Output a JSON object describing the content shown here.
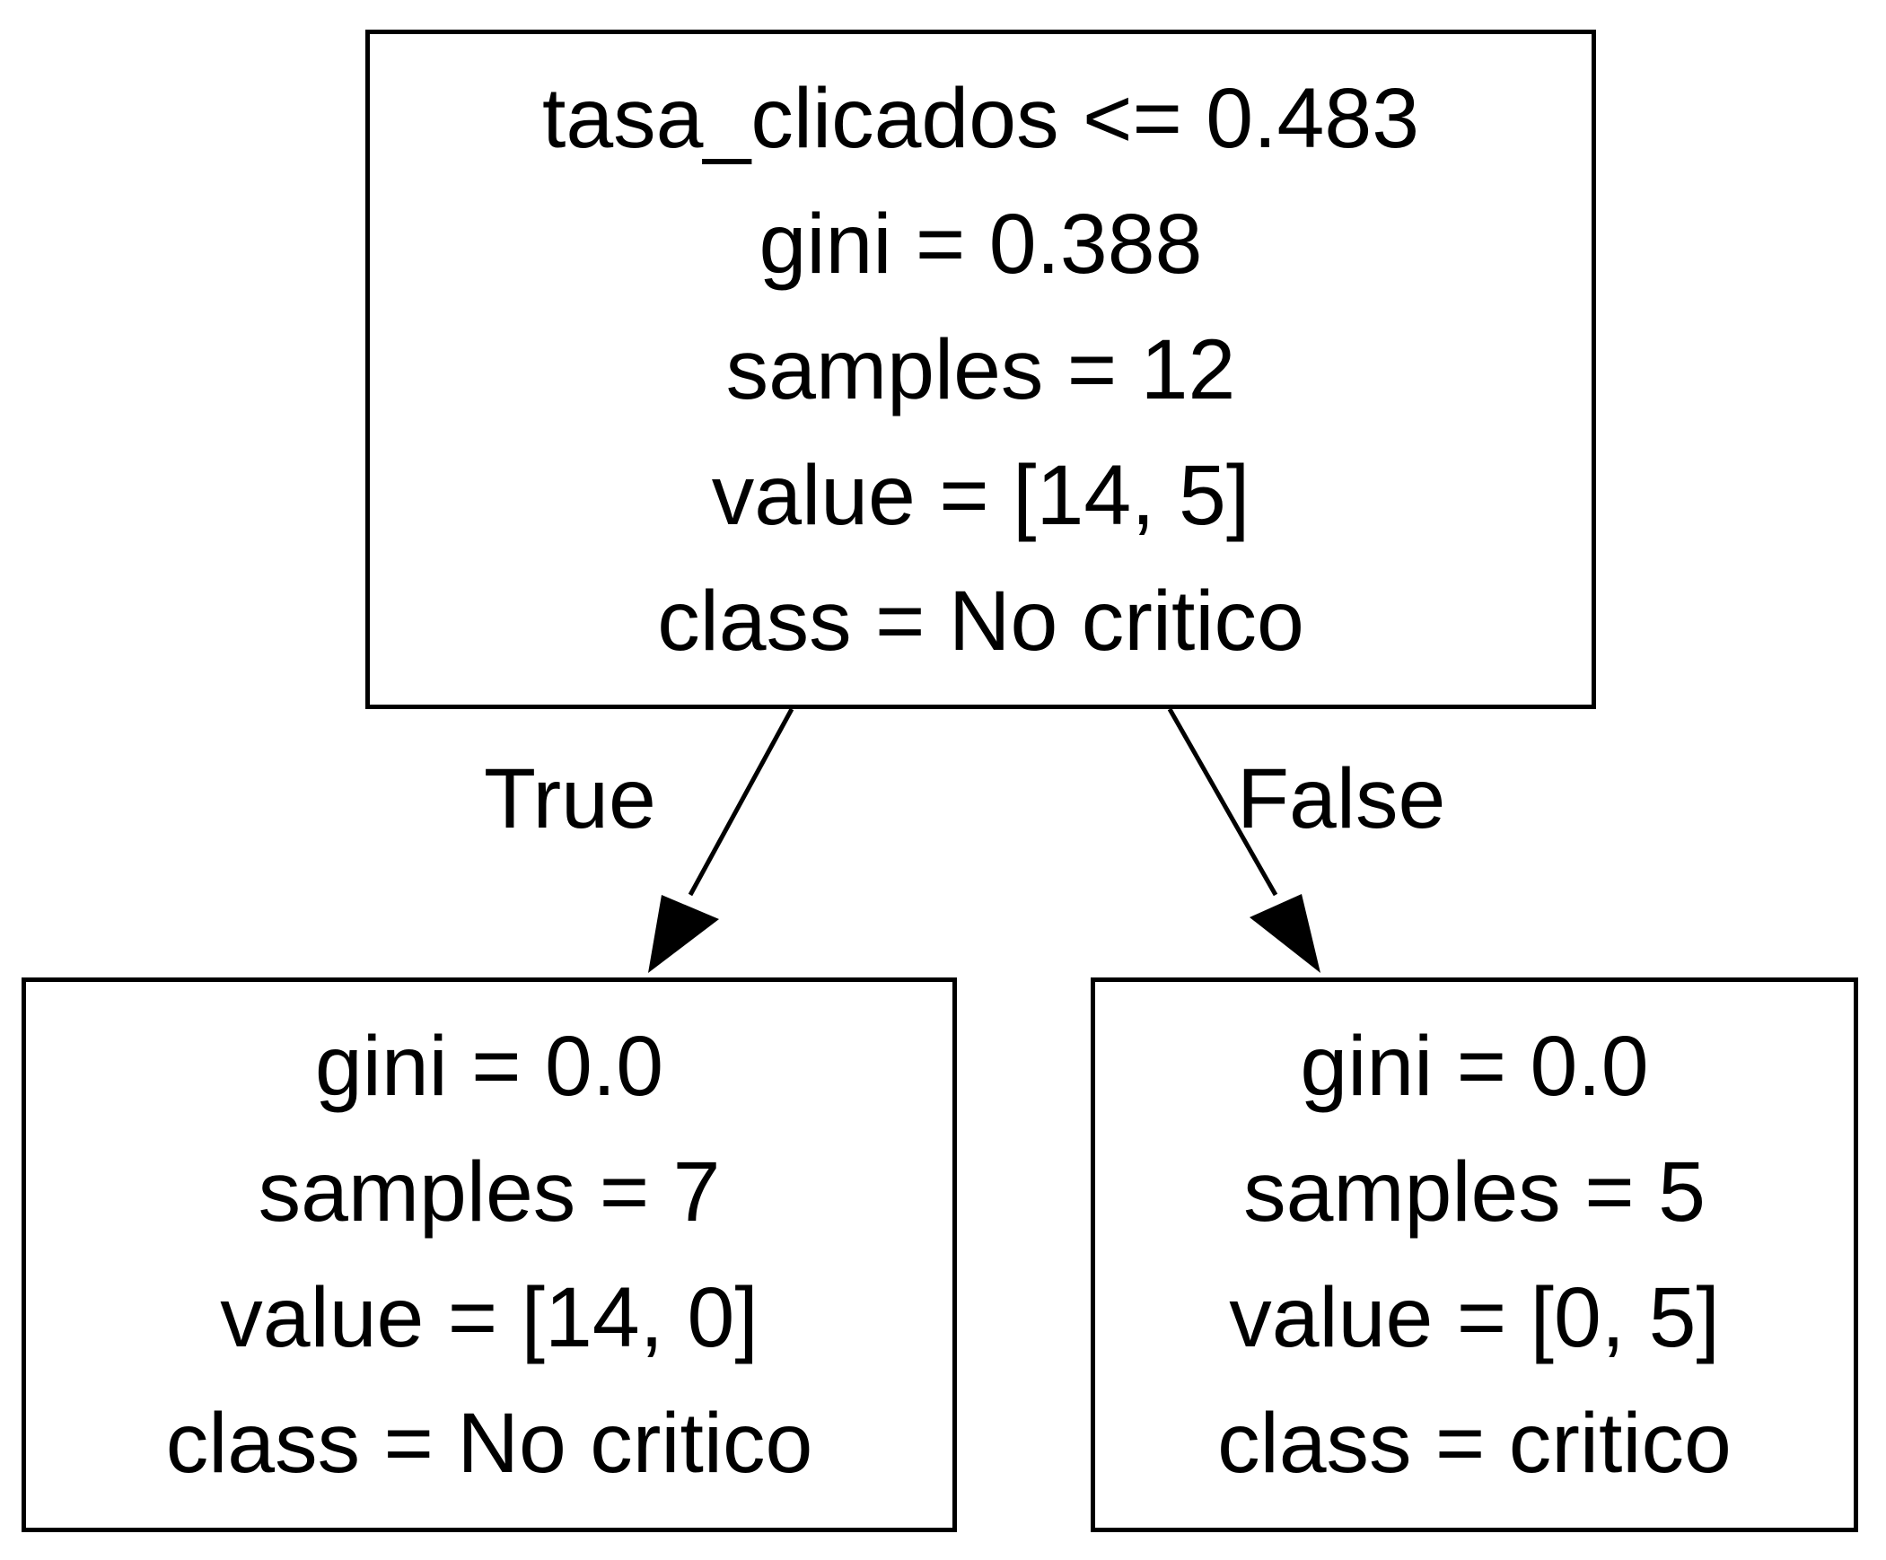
{
  "tree": {
    "root": {
      "lines": [
        "tasa_clicados <= 0.483",
        "gini = 0.388",
        "samples = 12",
        "value = [14, 5]",
        "class = No critico"
      ]
    },
    "left": {
      "lines": [
        "gini = 0.0",
        "samples = 7",
        "value = [14, 0]",
        "class = No critico"
      ]
    },
    "right": {
      "lines": [
        "gini = 0.0",
        "samples = 5",
        "value = [0, 5]",
        "class = critico"
      ]
    },
    "edges": {
      "true_label": "True",
      "false_label": "False"
    }
  },
  "colors": {
    "stroke": "#000000",
    "background": "#ffffff"
  }
}
